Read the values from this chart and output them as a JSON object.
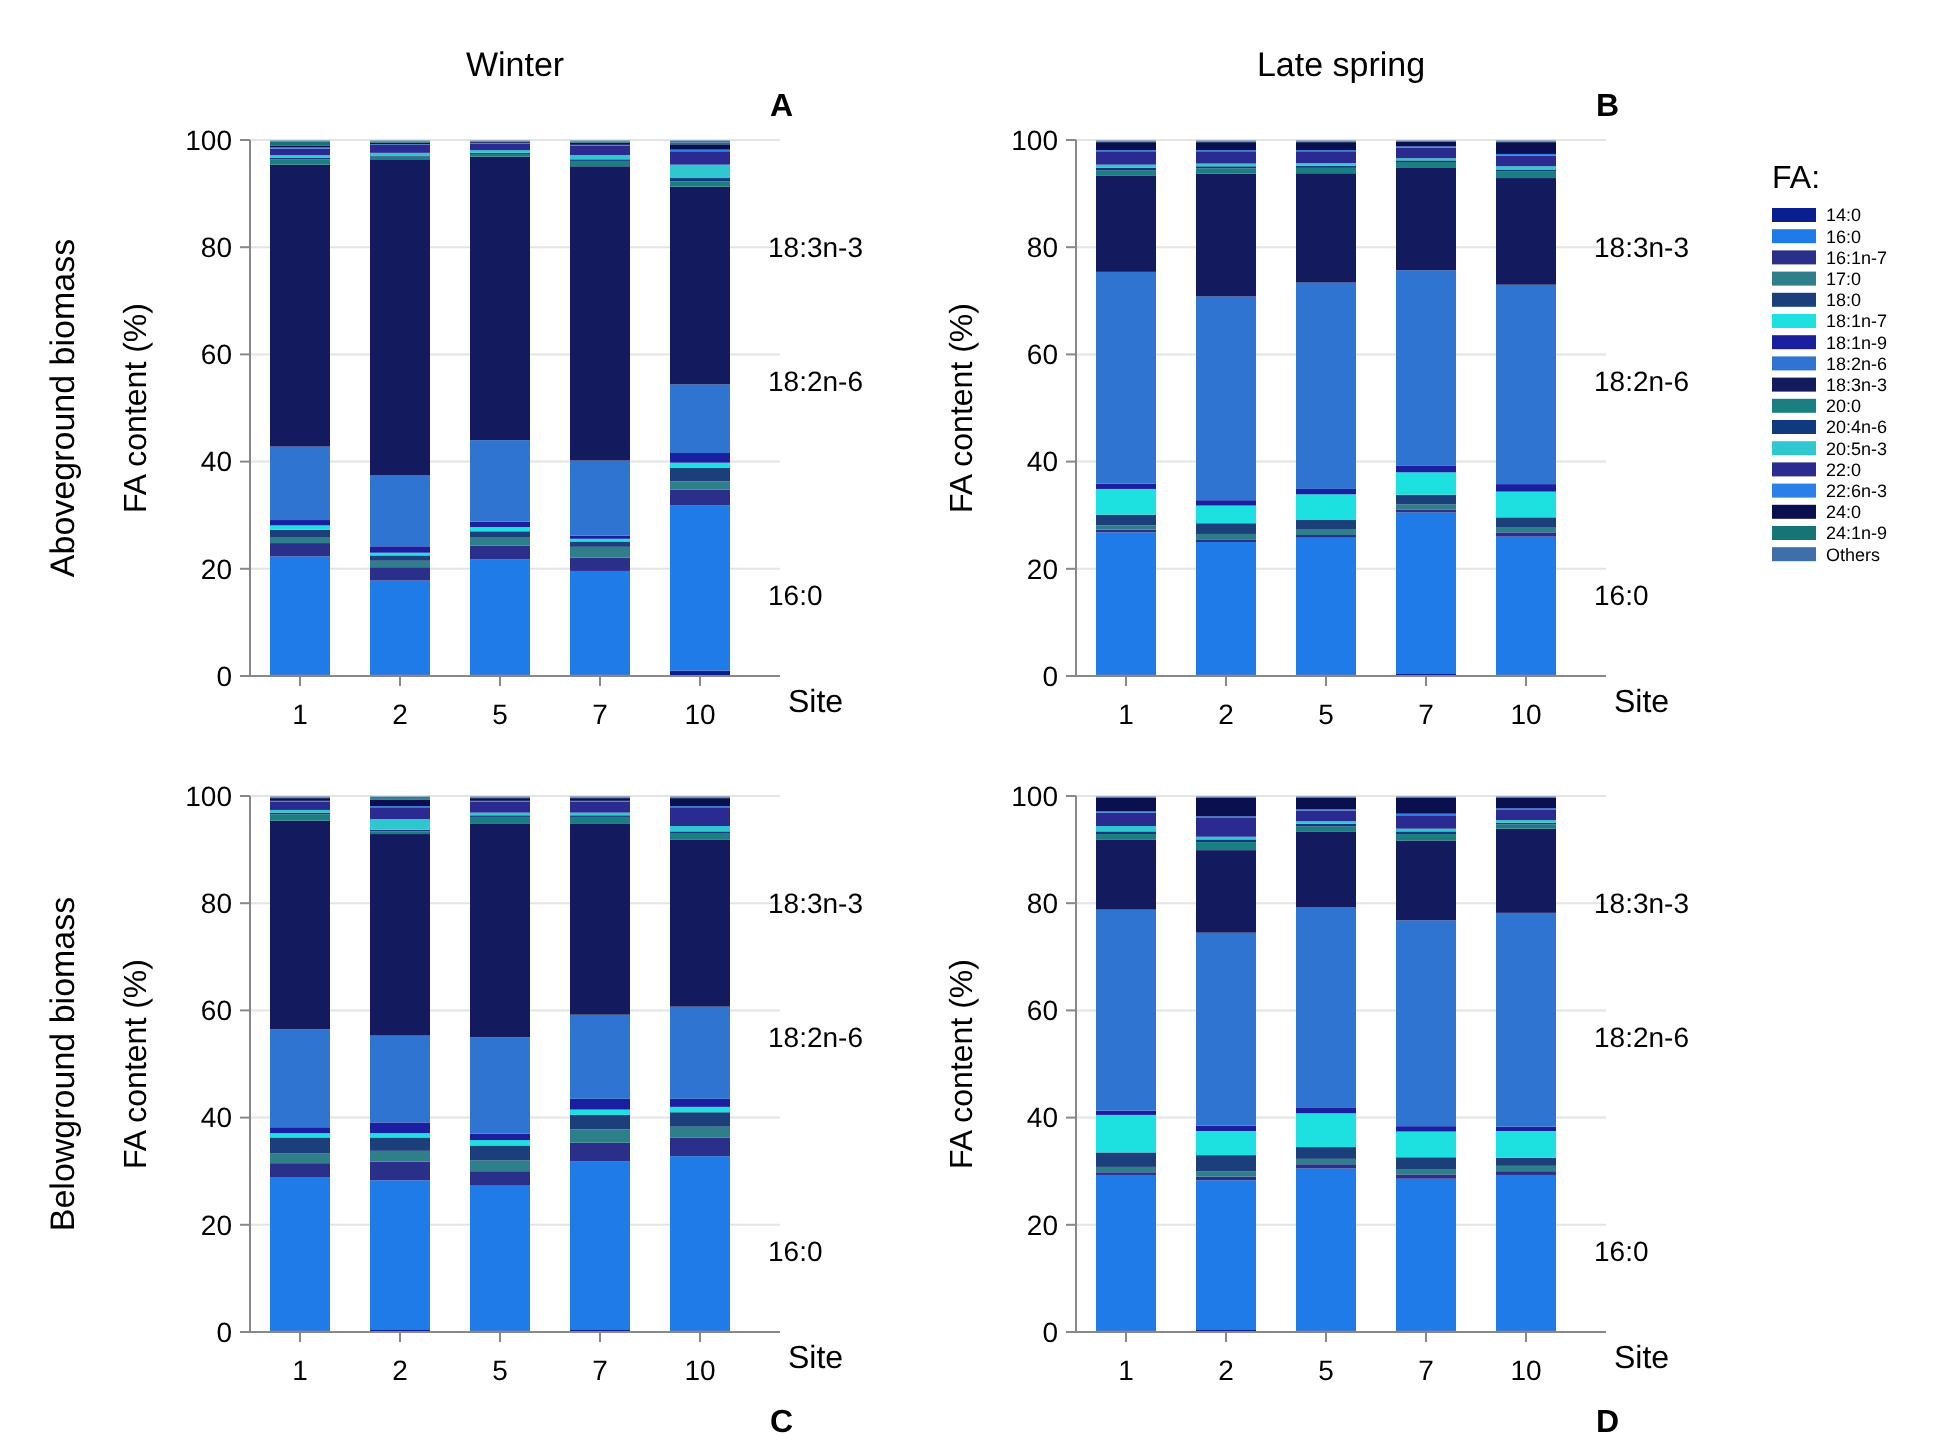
{
  "chart_data": [
    {
      "type": "bar",
      "stacked": true,
      "title": "Winter",
      "ylabel": "FA content (%)",
      "xlabel": "Site",
      "categories": [
        "1",
        "2",
        "5",
        "7",
        "10"
      ],
      "ylim": [
        0,
        100
      ],
      "yticks": [
        0,
        20,
        40,
        60,
        80,
        100
      ],
      "grid": "y",
      "legend": false,
      "annotations": [
        "18:3n-3",
        "18:2n-6",
        "16:0",
        "A",
        "Aboveground biomass"
      ],
      "series": [
        {
          "color": "#0a1f8f",
          "values": [
            0.3,
            0.3,
            0.3,
            0.3,
            1
          ]
        },
        {
          "color": "#1f7be8",
          "values": [
            22,
            17.5,
            21.5,
            19.3,
            30.8
          ]
        },
        {
          "color": "#2a2f8a",
          "values": [
            2.5,
            2.5,
            2.5,
            2.5,
            3
          ]
        },
        {
          "color": "#2e7f8a",
          "values": [
            1,
            1.2,
            1.5,
            2,
            1.5
          ]
        },
        {
          "color": "#1a3f7a",
          "values": [
            1.5,
            1,
            1.2,
            1,
            2.5
          ]
        },
        {
          "color": "#1de0e0",
          "values": [
            0.8,
            0.5,
            0.8,
            0.5,
            1
          ]
        },
        {
          "color": "#1a1fa0",
          "values": [
            1,
            1.2,
            1,
            0.6,
            1.8
          ]
        },
        {
          "color": "#2f74d0",
          "values": [
            13.7,
            13.3,
            15.2,
            14,
            12.8
          ]
        },
        {
          "color": "#141a5e",
          "values": [
            52.6,
            58.9,
            52.9,
            54.9,
            36.9
          ]
        },
        {
          "color": "#1a7f80",
          "values": [
            1,
            0.5,
            0.5,
            1,
            1
          ]
        },
        {
          "color": "#0f3a80",
          "values": [
            0.3,
            0.2,
            0.2,
            0.3,
            0.6
          ]
        },
        {
          "color": "#2fc8d0",
          "values": [
            0.5,
            0.5,
            0.5,
            0.8,
            2.5
          ]
        },
        {
          "color": "#2a2a90",
          "values": [
            1.2,
            1.5,
            1.2,
            1.7,
            2.5
          ]
        },
        {
          "color": "#2a80e8",
          "values": [
            0.2,
            0.1,
            0.1,
            0.2,
            0.3
          ]
        },
        {
          "color": "#0a0f50",
          "values": [
            0.3,
            0.3,
            0.2,
            0.4,
            1
          ]
        },
        {
          "color": "#157575",
          "values": [
            0.8,
            0.2,
            0.1,
            0.2,
            0.3
          ]
        },
        {
          "color": "#3f6fa8",
          "values": [
            0.2,
            0.2,
            0.2,
            0.2,
            0.4
          ]
        }
      ]
    },
    {
      "type": "bar",
      "stacked": true,
      "title": "Late spring",
      "ylabel": "FA content (%)",
      "xlabel": "Site",
      "categories": [
        "1",
        "2",
        "5",
        "7",
        "10"
      ],
      "ylim": [
        0,
        100
      ],
      "yticks": [
        0,
        20,
        40,
        60,
        80,
        100
      ],
      "grid": "y",
      "legend": "right",
      "legend_title": "FA:",
      "annotations": [
        "18:3n-3",
        "18:2n-6",
        "16:0",
        "B"
      ],
      "series": [
        {
          "name": "14:0",
          "color": "#0a1f8f",
          "values": [
            0.3,
            0.3,
            0.3,
            0.5,
            0.3
          ]
        },
        {
          "name": "16:0",
          "color": "#1f7be8",
          "values": [
            26.5,
            24.7,
            25.5,
            30,
            25.7
          ]
        },
        {
          "name": "16:1n-7",
          "color": "#2a2f8a",
          "values": [
            0.5,
            0.5,
            0.5,
            0.5,
            0.8
          ]
        },
        {
          "name": "17:0",
          "color": "#2e7f8a",
          "values": [
            0.8,
            1,
            1,
            1,
            1
          ]
        },
        {
          "name": "18:0",
          "color": "#1a3f7a",
          "values": [
            2,
            2,
            1.8,
            1.8,
            1.8
          ]
        },
        {
          "name": "18:1n-7",
          "color": "#1de0e0",
          "values": [
            4.8,
            3.3,
            4.8,
            4.2,
            4.8
          ]
        },
        {
          "name": "18:1n-9",
          "color": "#1a1fa0",
          "values": [
            1,
            1,
            1,
            1.2,
            1.4
          ]
        },
        {
          "name": "18:2n-6",
          "color": "#2f74d0",
          "values": [
            39.5,
            38,
            38.5,
            36.5,
            37.2
          ]
        },
        {
          "name": "18:3n-3",
          "color": "#141a5e",
          "values": [
            17.9,
            22.9,
            20.4,
            19.2,
            19.9
          ]
        },
        {
          "name": "20:0",
          "color": "#1a7f80",
          "values": [
            1,
            1,
            1,
            1,
            1.2
          ]
        },
        {
          "name": "20:4n-6",
          "color": "#0f3a80",
          "values": [
            0.5,
            0.4,
            0.4,
            0.3,
            0.4
          ]
        },
        {
          "name": "20:5n-3",
          "color": "#2fc8d0",
          "values": [
            0.6,
            0.5,
            0.5,
            0.4,
            0.6
          ]
        },
        {
          "name": "22:0",
          "color": "#2a2a90",
          "values": [
            2.5,
            2.3,
            2.2,
            2,
            2
          ]
        },
        {
          "name": "22:6n-3",
          "color": "#2a80e8",
          "values": [
            0.2,
            0.2,
            0.2,
            0.2,
            0.3
          ]
        },
        {
          "name": "24:0",
          "color": "#0a0f50",
          "values": [
            1.5,
            1.5,
            1.5,
            0.9,
            2.2
          ]
        },
        {
          "name": "24:1n-9",
          "color": "#157575",
          "values": [
            0.1,
            0.1,
            0.1,
            0.1,
            0.1
          ]
        },
        {
          "name": "Others",
          "color": "#3f6fa8",
          "values": [
            0.2,
            0.2,
            0.2,
            0.1,
            0.2
          ]
        }
      ]
    },
    {
      "type": "bar",
      "stacked": true,
      "ylabel": "FA content (%)",
      "xlabel": "Site",
      "categories": [
        "1",
        "2",
        "5",
        "7",
        "10"
      ],
      "ylim": [
        0,
        100
      ],
      "yticks": [
        0,
        20,
        40,
        60,
        80,
        100
      ],
      "grid": "y",
      "legend": false,
      "annotations": [
        "18:3n-3",
        "18:2n-6",
        "16:0",
        "C",
        "Belowground biomass"
      ],
      "series": [
        {
          "color": "#0a1f8f",
          "values": [
            0.3,
            0.5,
            0.3,
            0.5,
            0.3
          ]
        },
        {
          "color": "#1f7be8",
          "values": [
            28.5,
            27.8,
            27,
            31.3,
            32.5
          ]
        },
        {
          "color": "#2a2f8a",
          "values": [
            2.7,
            3.5,
            2.7,
            3.5,
            3.5
          ]
        },
        {
          "color": "#2e7f8a",
          "values": [
            1.8,
            2,
            2,
            2.5,
            2
          ]
        },
        {
          "color": "#1a3f7a",
          "values": [
            3,
            2.5,
            2.8,
            2.7,
            2.7
          ]
        },
        {
          "color": "#1de0e0",
          "values": [
            0.8,
            0.8,
            1,
            1,
            1
          ]
        },
        {
          "color": "#1a1fa0",
          "values": [
            1.1,
            2,
            1.2,
            2,
            1.5
          ]
        },
        {
          "color": "#2f74d0",
          "values": [
            18.3,
            16.2,
            18,
            15.7,
            17.2
          ]
        },
        {
          "color": "#141a5e",
          "values": [
            38.9,
            37.6,
            39.9,
            35.7,
            31.2
          ]
        },
        {
          "color": "#1a7f80",
          "values": [
            1.2,
            0.5,
            1.2,
            1.2,
            1.2
          ]
        },
        {
          "color": "#0f3a80",
          "values": [
            0.3,
            0.3,
            0.3,
            0.3,
            0.3
          ]
        },
        {
          "color": "#2fc8d0",
          "values": [
            0.5,
            2,
            0.5,
            0.5,
            1
          ]
        },
        {
          "color": "#2a2a90",
          "values": [
            1.5,
            2.2,
            2,
            2,
            3.5
          ]
        },
        {
          "color": "#2a80e8",
          "values": [
            0.2,
            0.2,
            0.2,
            0.2,
            0.2
          ]
        },
        {
          "color": "#0a0f50",
          "values": [
            0.5,
            1.2,
            0.5,
            0.5,
            1.5
          ]
        },
        {
          "color": "#157575",
          "values": [
            0.1,
            0.3,
            0.1,
            0.1,
            0.1
          ]
        },
        {
          "color": "#3f6fa8",
          "values": [
            0.2,
            0.3,
            0.2,
            0.2,
            0.2
          ]
        }
      ]
    },
    {
      "type": "bar",
      "stacked": true,
      "ylabel": "FA content (%)",
      "xlabel": "Site",
      "categories": [
        "1",
        "2",
        "5",
        "7",
        "10"
      ],
      "ylim": [
        0,
        100
      ],
      "yticks": [
        0,
        20,
        40,
        60,
        80,
        100
      ],
      "grid": "y",
      "legend": false,
      "annotations": [
        "18:3n-3",
        "18:2n-6",
        "16:0",
        "D"
      ],
      "series": [
        {
          "color": "#0a1f8f",
          "values": [
            0.3,
            0.5,
            0.3,
            0.3,
            0.3
          ]
        },
        {
          "color": "#1f7be8",
          "values": [
            29,
            27.8,
            30.2,
            28.3,
            29
          ]
        },
        {
          "color": "#2a2f8a",
          "values": [
            0.5,
            0.7,
            0.8,
            0.8,
            0.7
          ]
        },
        {
          "color": "#2e7f8a",
          "values": [
            1,
            1,
            1,
            1,
            1
          ]
        },
        {
          "color": "#1a3f7a",
          "values": [
            2.7,
            3,
            2.2,
            2.2,
            1.5
          ]
        },
        {
          "color": "#1de0e0",
          "values": [
            7,
            4.5,
            6.3,
            4.8,
            5
          ]
        },
        {
          "color": "#1a1fa0",
          "values": [
            0.8,
            1,
            1,
            1,
            0.8
          ]
        },
        {
          "color": "#2f74d0",
          "values": [
            37.5,
            36,
            37.4,
            38.4,
            39.9
          ]
        },
        {
          "color": "#141a5e",
          "values": [
            13.1,
            15.4,
            14.1,
            14.9,
            15.7
          ]
        },
        {
          "color": "#1a7f80",
          "values": [
            1,
            1.5,
            1,
            1.2,
            0.8
          ]
        },
        {
          "color": "#0f3a80",
          "values": [
            0.5,
            0.5,
            0.5,
            0.5,
            0.3
          ]
        },
        {
          "color": "#2fc8d0",
          "values": [
            1,
            0.5,
            0.5,
            0.5,
            0.5
          ]
        },
        {
          "color": "#2a2a90",
          "values": [
            2.5,
            3.5,
            2,
            2.5,
            1.9
          ]
        },
        {
          "color": "#2a80e8",
          "values": [
            0.3,
            0.3,
            0.2,
            0.3,
            0.3
          ]
        },
        {
          "color": "#0a0f50",
          "values": [
            2.5,
            3.5,
            2.2,
            3,
            2
          ]
        },
        {
          "color": "#157575",
          "values": [
            0.1,
            0.1,
            0.1,
            0.1,
            0.1
          ]
        },
        {
          "color": "#3f6fa8",
          "values": [
            0.1,
            0.1,
            0.1,
            0.1,
            0.1
          ]
        }
      ]
    }
  ]
}
